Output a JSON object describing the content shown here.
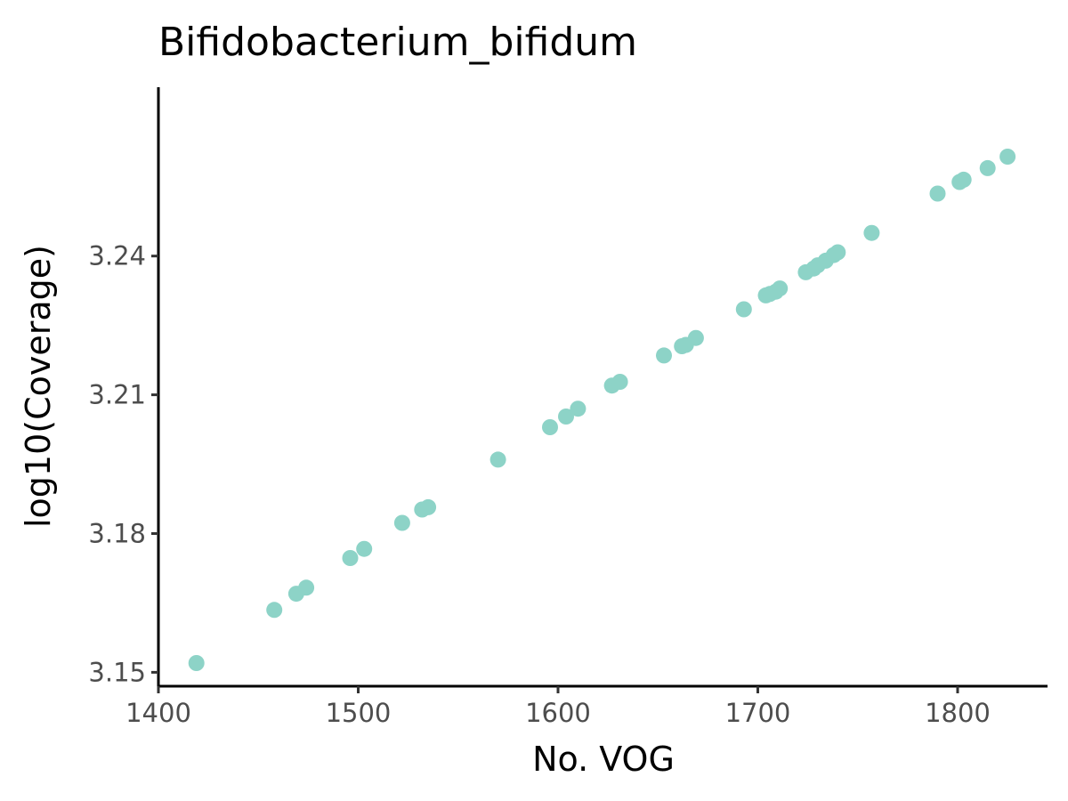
{
  "chart_data": {
    "type": "scatter",
    "title": "Bifidobacterium_bifidum",
    "xlabel": "No. VOG",
    "ylabel": "log10(Coverage)",
    "xlim": [
      1400,
      1845
    ],
    "ylim": [
      3.147,
      3.2765
    ],
    "xticks": [
      1400,
      1500,
      1600,
      1700,
      1800
    ],
    "yticks": [
      3.15,
      3.18,
      3.21,
      3.24
    ],
    "xtick_labels": [
      "1400",
      "1500",
      "1600",
      "1700",
      "1800"
    ],
    "ytick_labels": [
      "3.15",
      "3.18",
      "3.21",
      "3.24"
    ],
    "grid": false,
    "legend": "none",
    "point_color": "#8dd3c7",
    "points": [
      {
        "x": 1419,
        "y": 3.152
      },
      {
        "x": 1458,
        "y": 3.1635
      },
      {
        "x": 1469,
        "y": 3.167
      },
      {
        "x": 1474,
        "y": 3.1683
      },
      {
        "x": 1496,
        "y": 3.1747
      },
      {
        "x": 1503,
        "y": 3.1767
      },
      {
        "x": 1522,
        "y": 3.1823
      },
      {
        "x": 1532,
        "y": 3.1852
      },
      {
        "x": 1535,
        "y": 3.1857
      },
      {
        "x": 1570,
        "y": 3.196
      },
      {
        "x": 1596,
        "y": 3.203
      },
      {
        "x": 1604,
        "y": 3.2053
      },
      {
        "x": 1610,
        "y": 3.207
      },
      {
        "x": 1627,
        "y": 3.212
      },
      {
        "x": 1631,
        "y": 3.2128
      },
      {
        "x": 1653,
        "y": 3.2185
      },
      {
        "x": 1662,
        "y": 3.2205
      },
      {
        "x": 1664,
        "y": 3.2208
      },
      {
        "x": 1669,
        "y": 3.2223
      },
      {
        "x": 1693,
        "y": 3.2285
      },
      {
        "x": 1704,
        "y": 3.2315
      },
      {
        "x": 1706,
        "y": 3.2318
      },
      {
        "x": 1709,
        "y": 3.2323
      },
      {
        "x": 1711,
        "y": 3.233
      },
      {
        "x": 1724,
        "y": 3.2365
      },
      {
        "x": 1728,
        "y": 3.2373
      },
      {
        "x": 1730,
        "y": 3.238
      },
      {
        "x": 1734,
        "y": 3.239
      },
      {
        "x": 1738,
        "y": 3.2402
      },
      {
        "x": 1740,
        "y": 3.2408
      },
      {
        "x": 1757,
        "y": 3.245
      },
      {
        "x": 1790,
        "y": 3.2535
      },
      {
        "x": 1801,
        "y": 3.256
      },
      {
        "x": 1803,
        "y": 3.2565
      },
      {
        "x": 1815,
        "y": 3.259
      },
      {
        "x": 1825,
        "y": 3.2615
      }
    ]
  }
}
